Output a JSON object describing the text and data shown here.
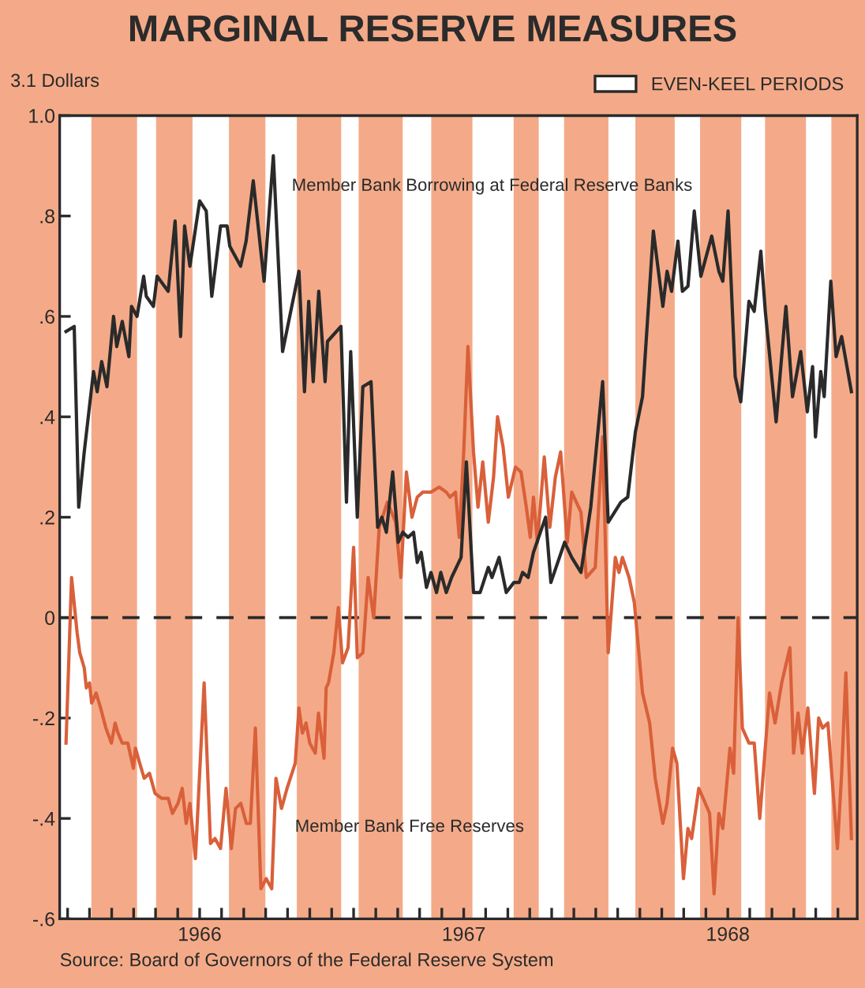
{
  "chart_data": {
    "type": "line",
    "title": "MARGINAL RESERVE MEASURES",
    "ylabel": "3.1 Dollars",
    "annotations": [
      "Source: Board of Governors of the Federal Reserve System"
    ],
    "xlim": [
      1965.97,
      1968.99
    ],
    "xticks": [
      {
        "value": 1966.0,
        "label": null
      },
      {
        "value": 1966.083,
        "label": null
      },
      {
        "value": 1966.167,
        "label": null
      },
      {
        "value": 1966.25,
        "label": null
      },
      {
        "value": 1966.333,
        "label": null
      },
      {
        "value": 1966.417,
        "label": null
      },
      {
        "value": 1966.5,
        "label": "1966"
      },
      {
        "value": 1966.583,
        "label": null
      },
      {
        "value": 1966.667,
        "label": null
      },
      {
        "value": 1966.75,
        "label": null
      },
      {
        "value": 1966.833,
        "label": null
      },
      {
        "value": 1966.917,
        "label": null
      },
      {
        "value": 1967.0,
        "label": null
      },
      {
        "value": 1967.083,
        "label": null
      },
      {
        "value": 1967.167,
        "label": null
      },
      {
        "value": 1967.25,
        "label": null
      },
      {
        "value": 1967.333,
        "label": null
      },
      {
        "value": 1967.417,
        "label": null
      },
      {
        "value": 1967.5,
        "label": "1967"
      },
      {
        "value": 1967.583,
        "label": null
      },
      {
        "value": 1967.667,
        "label": null
      },
      {
        "value": 1967.75,
        "label": null
      },
      {
        "value": 1967.833,
        "label": null
      },
      {
        "value": 1967.917,
        "label": null
      },
      {
        "value": 1968.0,
        "label": null
      },
      {
        "value": 1968.083,
        "label": null
      },
      {
        "value": 1968.167,
        "label": null
      },
      {
        "value": 1968.25,
        "label": null
      },
      {
        "value": 1968.333,
        "label": null
      },
      {
        "value": 1968.417,
        "label": null
      },
      {
        "value": 1968.5,
        "label": "1968"
      },
      {
        "value": 1968.583,
        "label": null
      },
      {
        "value": 1968.667,
        "label": null
      },
      {
        "value": 1968.75,
        "label": null
      },
      {
        "value": 1968.833,
        "label": null
      },
      {
        "value": 1968.917,
        "label": null
      }
    ],
    "ylim": [
      -0.6,
      1.0
    ],
    "yticks": [
      {
        "value": -0.6,
        "label": "-.6"
      },
      {
        "value": -0.4,
        "label": "-.4"
      },
      {
        "value": -0.2,
        "label": "-.2"
      },
      0,
      {
        "value": 0.2,
        "label": ".2"
      },
      {
        "value": 0.4,
        "label": ".4"
      },
      {
        "value": 0.6,
        "label": ".6"
      },
      {
        "value": 0.8,
        "label": ".8"
      },
      {
        "value": 1.0,
        "label": "1.0"
      }
    ],
    "grid": false,
    "legend": "top right",
    "marker": "none",
    "line_style": "solid",
    "ref_lines": [
      {
        "axis": "y",
        "value": 0,
        "color": "#2a2a2a",
        "line_style": "dashed"
      }
    ],
    "bands": [
      {
        "axis": "x",
        "from": 1965.97,
        "to": 1966.09,
        "color": "#ffffff",
        "label": "EVEN-KEEL PERIODS"
      },
      {
        "axis": "x",
        "from": 1966.263,
        "to": 1966.335,
        "color": "#ffffff"
      },
      {
        "axis": "x",
        "from": 1966.473,
        "to": 1966.611,
        "color": "#ffffff"
      },
      {
        "axis": "x",
        "from": 1966.749,
        "to": 1966.868,
        "color": "#ffffff"
      },
      {
        "axis": "x",
        "from": 1967.036,
        "to": 1967.102,
        "color": "#ffffff"
      },
      {
        "axis": "x",
        "from": 1967.269,
        "to": 1967.377,
        "color": "#ffffff"
      },
      {
        "axis": "x",
        "from": 1967.533,
        "to": 1967.689,
        "color": "#ffffff"
      },
      {
        "axis": "x",
        "from": 1967.784,
        "to": 1967.88,
        "color": "#ffffff"
      },
      {
        "axis": "x",
        "from": 1968.048,
        "to": 1968.15,
        "color": "#ffffff"
      },
      {
        "axis": "x",
        "from": 1968.299,
        "to": 1968.395,
        "color": "#ffffff"
      },
      {
        "axis": "x",
        "from": 1968.551,
        "to": 1968.641,
        "color": "#ffffff"
      },
      {
        "axis": "x",
        "from": 1968.796,
        "to": 1968.892,
        "color": "#ffffff"
      }
    ],
    "series": [
      {
        "name": "Member Bank Borrowing at Federal Reserve Banks",
        "color": "#2a2a2a",
        "x": [
          1965.994,
          1966.025,
          1966.042,
          1966.063,
          1966.098,
          1966.112,
          1966.129,
          1966.149,
          1966.174,
          1966.186,
          1966.207,
          1966.232,
          1966.242,
          1966.263,
          1966.288,
          1966.298,
          1966.325,
          1966.339,
          1966.381,
          1966.407,
          1966.428,
          1966.443,
          1966.463,
          1966.5,
          1966.525,
          1966.546,
          1966.579,
          1966.604,
          1966.614,
          1966.655,
          1966.676,
          1966.703,
          1966.744,
          1966.779,
          1966.814,
          1966.876,
          1966.897,
          1966.913,
          1966.93,
          1966.951,
          1966.975,
          1966.984,
          1967.035,
          1967.056,
          1967.072,
          1967.097,
          1967.118,
          1967.149,
          1967.174,
          1967.19,
          1967.207,
          1967.231,
          1967.252,
          1967.269,
          1967.289,
          1967.31,
          1967.324,
          1967.339,
          1967.359,
          1967.376,
          1967.397,
          1967.413,
          1967.434,
          1967.454,
          1967.49,
          1967.51,
          1967.537,
          1967.562,
          1967.593,
          1967.607,
          1967.634,
          1967.661,
          1967.69,
          1967.71,
          1967.723,
          1967.744,
          1967.764,
          1967.81,
          1967.83,
          1967.882,
          1967.909,
          1967.944,
          1967.981,
          1968.026,
          1968.047,
          1968.095,
          1968.121,
          1968.15,
          1968.177,
          1968.218,
          1968.254,
          1968.27,
          1968.287,
          1968.311,
          1968.328,
          1968.349,
          1968.373,
          1968.398,
          1968.439,
          1968.466,
          1968.481,
          1968.501,
          1968.528,
          1968.549,
          1968.58,
          1968.6,
          1968.625,
          1968.642,
          1968.683,
          1968.72,
          1968.745,
          1968.776,
          1968.801,
          1968.821,
          1968.832,
          1968.852,
          1968.865,
          1968.89,
          1968.91,
          1968.931,
          1968.968
        ],
        "values": [
          0.57,
          0.58,
          0.22,
          0.33,
          0.49,
          0.45,
          0.51,
          0.46,
          0.6,
          0.54,
          0.59,
          0.52,
          0.62,
          0.6,
          0.68,
          0.64,
          0.62,
          0.68,
          0.65,
          0.79,
          0.56,
          0.78,
          0.7,
          0.83,
          0.81,
          0.64,
          0.78,
          0.78,
          0.74,
          0.7,
          0.75,
          0.87,
          0.67,
          0.92,
          0.53,
          0.69,
          0.45,
          0.63,
          0.47,
          0.65,
          0.47,
          0.55,
          0.58,
          0.23,
          0.53,
          0.2,
          0.46,
          0.47,
          0.18,
          0.2,
          0.17,
          0.29,
          0.15,
          0.17,
          0.16,
          0.17,
          0.11,
          0.13,
          0.06,
          0.09,
          0.05,
          0.09,
          0.05,
          0.08,
          0.12,
          0.31,
          0.05,
          0.05,
          0.1,
          0.08,
          0.12,
          0.05,
          0.07,
          0.07,
          0.09,
          0.08,
          0.13,
          0.2,
          0.07,
          0.15,
          0.12,
          0.09,
          0.22,
          0.47,
          0.19,
          0.23,
          0.24,
          0.37,
          0.44,
          0.77,
          0.62,
          0.69,
          0.65,
          0.75,
          0.65,
          0.66,
          0.81,
          0.68,
          0.76,
          0.69,
          0.67,
          0.81,
          0.48,
          0.43,
          0.63,
          0.61,
          0.73,
          0.61,
          0.39,
          0.62,
          0.44,
          0.53,
          0.41,
          0.5,
          0.36,
          0.49,
          0.44,
          0.67,
          0.52,
          0.56,
          0.45
        ]
      },
      {
        "name": "Member Bank Free Reserves",
        "color": "#d9603a",
        "x": [
          1965.994,
          1966.015,
          1966.036,
          1966.046,
          1966.063,
          1966.071,
          1966.083,
          1966.091,
          1966.108,
          1966.125,
          1966.145,
          1966.166,
          1966.18,
          1966.191,
          1966.207,
          1966.228,
          1966.249,
          1966.257,
          1966.273,
          1966.29,
          1966.31,
          1966.331,
          1966.356,
          1966.381,
          1966.397,
          1966.418,
          1966.434,
          1966.449,
          1966.463,
          1966.484,
          1966.517,
          1966.541,
          1966.558,
          1966.579,
          1966.6,
          1966.62,
          1966.636,
          1966.656,
          1966.677,
          1966.692,
          1966.711,
          1966.732,
          1966.752,
          1966.773,
          1966.789,
          1966.81,
          1966.831,
          1966.862,
          1966.876,
          1966.889,
          1966.903,
          1966.917,
          1966.938,
          1966.95,
          1966.971,
          1966.979,
          1966.988,
          1967.008,
          1967.025,
          1967.041,
          1967.062,
          1967.083,
          1967.097,
          1967.118,
          1967.138,
          1967.159,
          1967.18,
          1967.211,
          1967.242,
          1967.262,
          1967.283,
          1967.304,
          1967.324,
          1967.345,
          1967.376,
          1967.407,
          1967.434,
          1967.448,
          1967.469,
          1967.483,
          1967.5,
          1967.516,
          1967.537,
          1967.554,
          1967.572,
          1967.593,
          1967.613,
          1967.628,
          1967.649,
          1967.669,
          1967.696,
          1967.717,
          1967.737,
          1967.752,
          1967.764,
          1967.779,
          1967.805,
          1967.826,
          1967.847,
          1967.867,
          1967.892,
          1967.909,
          1967.944,
          1967.964,
          1967.998,
          1968.026,
          1968.047,
          1968.074,
          1968.088,
          1968.101,
          1968.126,
          1968.146,
          1968.177,
          1968.204,
          1968.225,
          1968.254,
          1968.27,
          1968.291,
          1968.307,
          1968.332,
          1968.349,
          1968.363,
          1968.39,
          1968.415,
          1968.431,
          1968.448,
          1968.466,
          1968.481,
          1968.508,
          1968.522,
          1968.539,
          1968.555,
          1968.58,
          1968.6,
          1968.621,
          1968.658,
          1968.679,
          1968.704,
          1968.735,
          1968.749,
          1968.766,
          1968.782,
          1968.803,
          1968.828,
          1968.844,
          1968.859,
          1968.879,
          1968.915,
          1968.931,
          1968.947,
          1968.968
        ],
        "values": [
          -0.25,
          0.08,
          -0.03,
          -0.07,
          -0.1,
          -0.14,
          -0.13,
          -0.17,
          -0.15,
          -0.18,
          -0.22,
          -0.25,
          -0.21,
          -0.23,
          -0.25,
          -0.25,
          -0.3,
          -0.26,
          -0.29,
          -0.32,
          -0.31,
          -0.35,
          -0.36,
          -0.36,
          -0.39,
          -0.37,
          -0.34,
          -0.41,
          -0.37,
          -0.48,
          -0.13,
          -0.45,
          -0.44,
          -0.46,
          -0.34,
          -0.46,
          -0.38,
          -0.37,
          -0.41,
          -0.41,
          -0.22,
          -0.54,
          -0.52,
          -0.54,
          -0.32,
          -0.38,
          -0.34,
          -0.29,
          -0.18,
          -0.23,
          -0.21,
          -0.25,
          -0.27,
          -0.19,
          -0.28,
          -0.14,
          -0.13,
          -0.07,
          0.02,
          -0.09,
          -0.06,
          0.14,
          -0.08,
          -0.07,
          0.08,
          0.0,
          0.18,
          0.23,
          0.19,
          0.08,
          0.29,
          0.2,
          0.24,
          0.25,
          0.25,
          0.26,
          0.25,
          0.24,
          0.25,
          0.16,
          0.33,
          0.54,
          0.33,
          0.22,
          0.31,
          0.19,
          0.28,
          0.4,
          0.34,
          0.24,
          0.3,
          0.29,
          0.22,
          0.16,
          0.24,
          0.15,
          0.32,
          0.18,
          0.28,
          0.33,
          0.15,
          0.25,
          0.21,
          0.08,
          0.1,
          0.36,
          -0.07,
          0.12,
          0.09,
          0.12,
          0.08,
          0.03,
          -0.15,
          -0.21,
          -0.32,
          -0.41,
          -0.37,
          -0.26,
          -0.29,
          -0.52,
          -0.42,
          -0.44,
          -0.34,
          -0.37,
          -0.39,
          -0.55,
          -0.39,
          -0.42,
          -0.26,
          -0.31,
          0.0,
          -0.22,
          -0.25,
          -0.25,
          -0.4,
          -0.15,
          -0.21,
          -0.13,
          -0.06,
          -0.27,
          -0.19,
          -0.27,
          -0.18,
          -0.35,
          -0.2,
          -0.22,
          -0.21,
          -0.46,
          -0.31,
          -0.11,
          -0.44
        ]
      }
    ]
  }
}
